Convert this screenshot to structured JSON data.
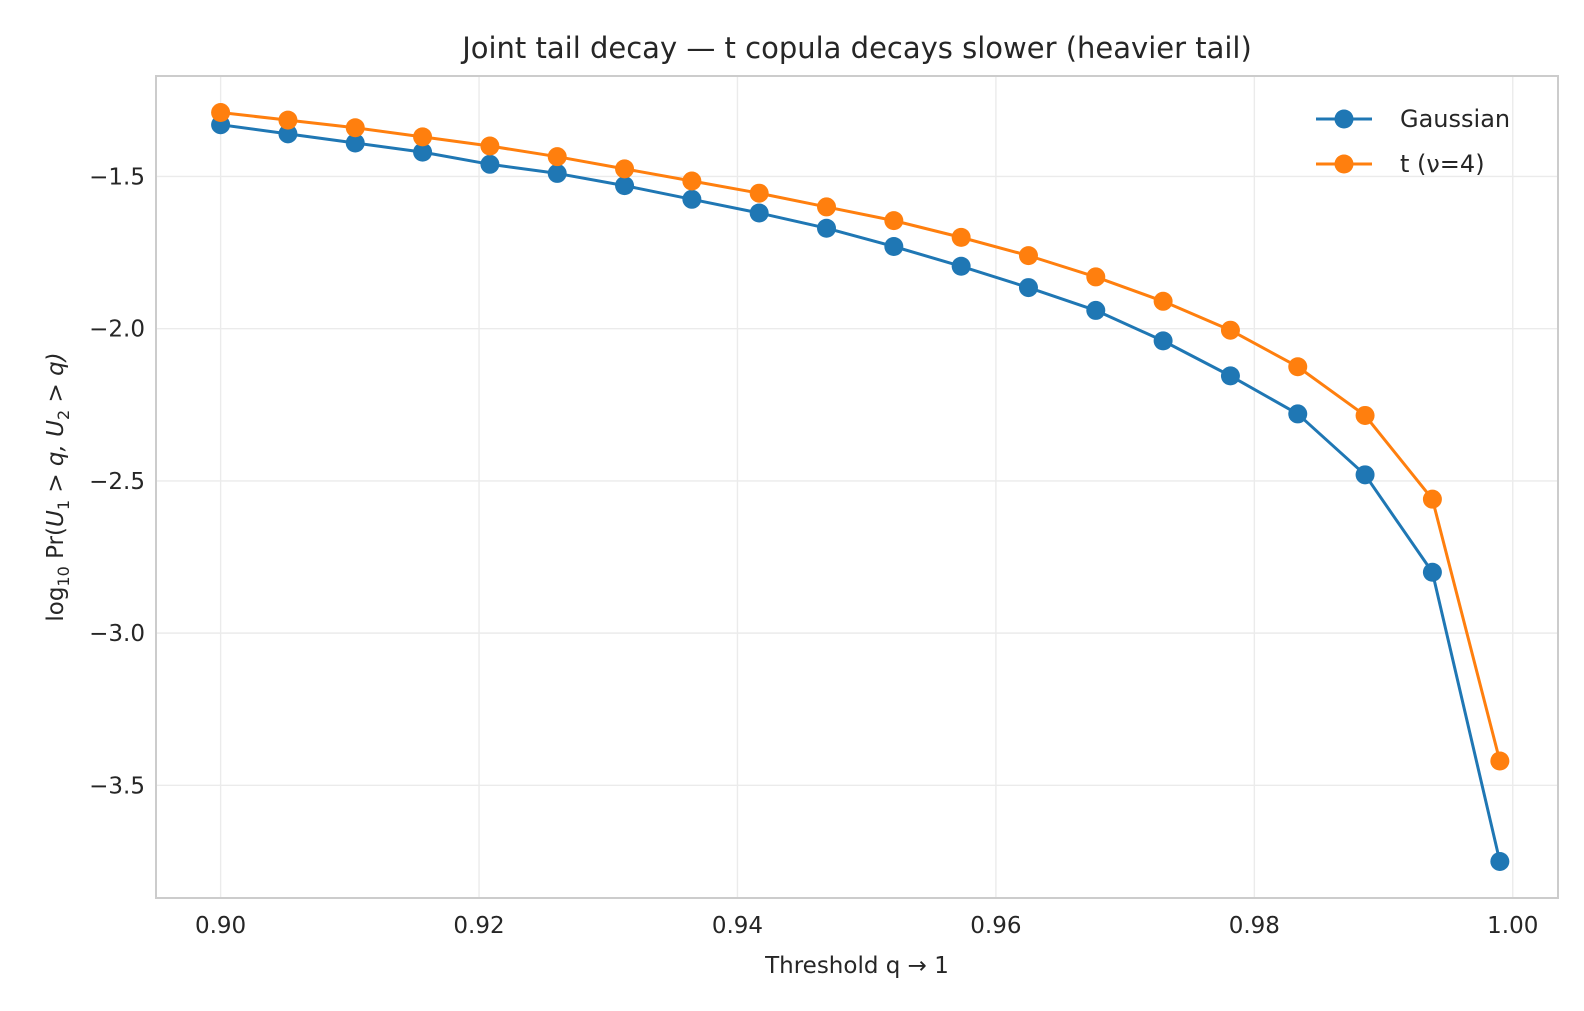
{
  "chart_data": {
    "type": "line",
    "title": "Joint tail decay — t copula decays slower (heavier tail)",
    "xlabel": "Threshold q → 1",
    "ylabel_parts": {
      "pre": "log",
      "sub": "10",
      "post": " Pr(",
      "u1": "U",
      "u1_sub": "1",
      "mid": " > q, ",
      "u2": "U",
      "u2_sub": "2",
      "end": " > q)"
    },
    "xlim": [
      0.895,
      1.0035
    ],
    "ylim": [
      -3.87,
      -1.17
    ],
    "xticks": [
      0.9,
      0.92,
      0.94,
      0.96,
      0.98,
      1.0
    ],
    "xtick_labels": [
      "0.90",
      "0.92",
      "0.94",
      "0.96",
      "0.98",
      "1.00"
    ],
    "yticks": [
      -1.5,
      -2.0,
      -2.5,
      -3.0,
      -3.5
    ],
    "ytick_labels": [
      "−1.5",
      "−2.0",
      "−2.5",
      "−3.0",
      "−3.5"
    ],
    "grid": true,
    "legend_position": "top-right",
    "x": [
      0.9,
      0.90521,
      0.91042,
      0.91563,
      0.92084,
      0.92605,
      0.93126,
      0.93647,
      0.94168,
      0.94689,
      0.9521,
      0.95731,
      0.96252,
      0.96773,
      0.97294,
      0.97815,
      0.98336,
      0.98857,
      0.99378,
      0.999
    ],
    "series": [
      {
        "name": "Gaussian",
        "color": "#1f77b4",
        "values": [
          -1.33,
          -1.36,
          -1.39,
          -1.42,
          -1.46,
          -1.49,
          -1.53,
          -1.575,
          -1.62,
          -1.67,
          -1.73,
          -1.795,
          -1.865,
          -1.94,
          -2.04,
          -2.155,
          -2.28,
          -2.48,
          -2.8,
          -3.75
        ]
      },
      {
        "name": "t (ν=4)",
        "color": "#ff7f0e",
        "values": [
          -1.29,
          -1.315,
          -1.34,
          -1.37,
          -1.4,
          -1.435,
          -1.475,
          -1.515,
          -1.555,
          -1.6,
          -1.645,
          -1.7,
          -1.76,
          -1.83,
          -1.91,
          -2.005,
          -2.125,
          -2.285,
          -2.56,
          -3.42
        ]
      }
    ]
  }
}
